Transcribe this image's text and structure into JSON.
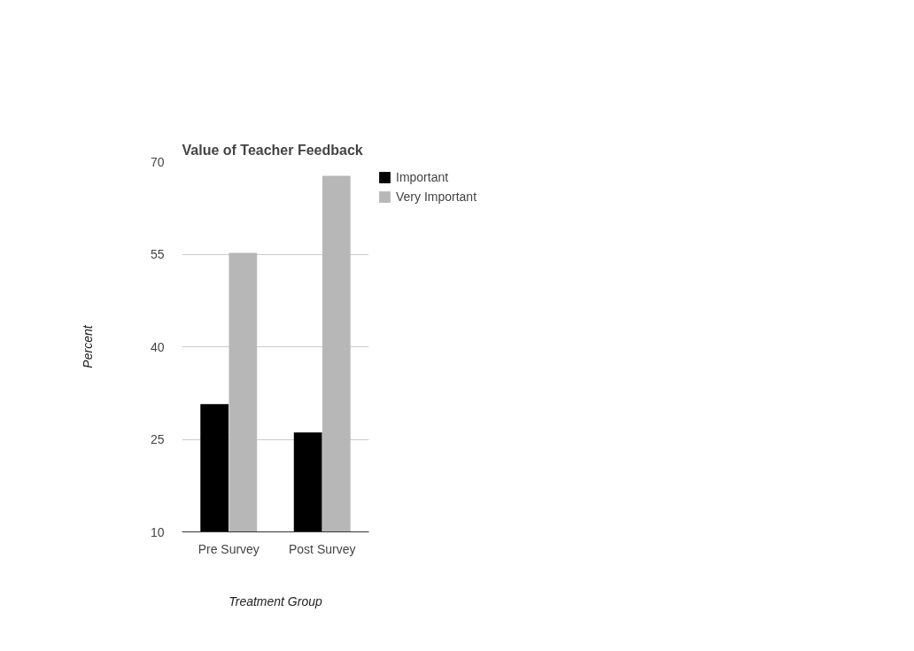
{
  "chart_data": {
    "type": "bar",
    "title": "Value of Teacher Feedback",
    "xlabel": "Treatment Group",
    "ylabel": "Percent",
    "categories": [
      "Pre Survey",
      "Post Survey"
    ],
    "series": [
      {
        "name": "Important",
        "color": "#000000",
        "values": [
          30.7,
          26.1
        ]
      },
      {
        "name": "Very Important",
        "color": "#b7b7b7",
        "values": [
          55.2,
          67.7
        ]
      }
    ],
    "ylim": [
      10,
      70
    ],
    "yticks": [
      10,
      25,
      40,
      55,
      70
    ],
    "grid": "y",
    "legend": "top right"
  }
}
